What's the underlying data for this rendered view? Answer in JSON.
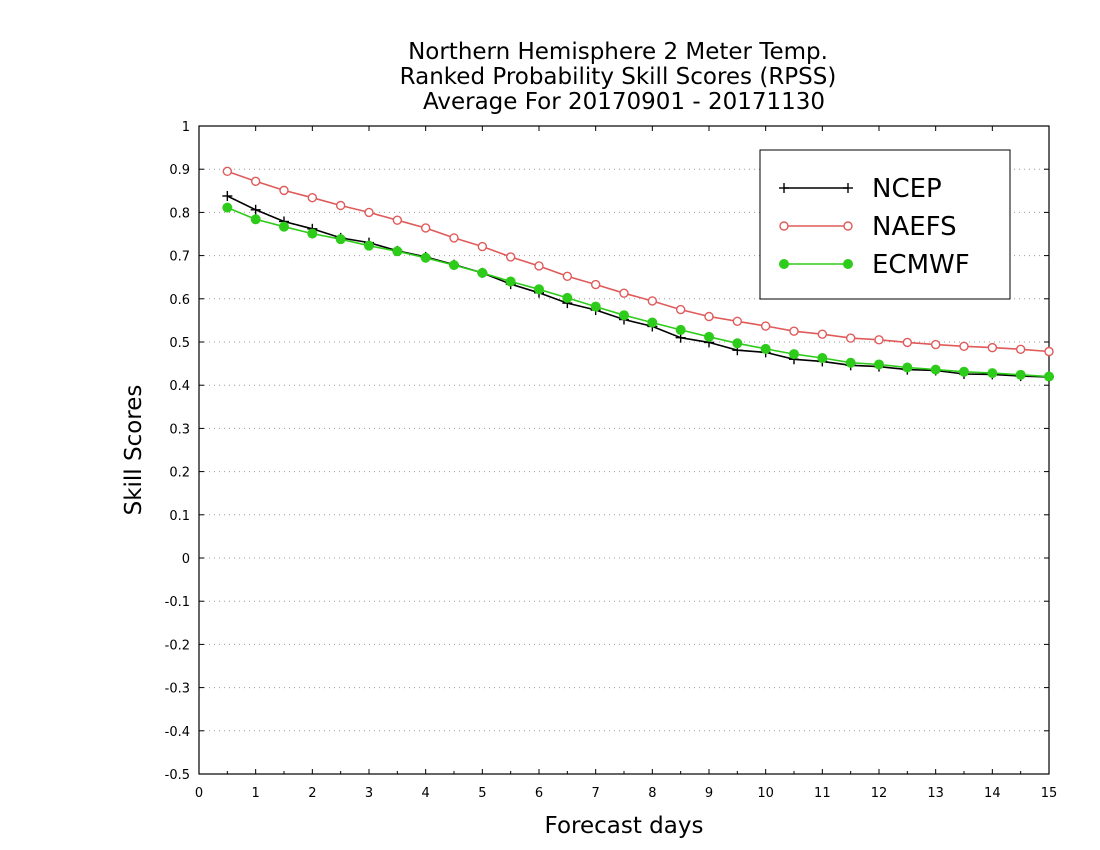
{
  "chart_data": {
    "type": "line",
    "title_lines": [
      "Northern Hemisphere 2 Meter Temp.",
      "Ranked Probability Skill Scores (RPSS)",
      "Average For 20170901 - 20171130"
    ],
    "xlabel": "Forecast days",
    "ylabel": "Skill Scores",
    "xlim": [
      0,
      15
    ],
    "ylim": [
      -0.5,
      1
    ],
    "x_ticks": [
      "0",
      "1",
      "2",
      "3",
      "4",
      "5",
      "6",
      "7",
      "8",
      "9",
      "10",
      "11",
      "12",
      "13",
      "14",
      "15"
    ],
    "y_ticks": [
      "1",
      "0.9",
      "0.8",
      "0.7",
      "0.6",
      "0.5",
      "0.4",
      "0.3",
      "0.2",
      "0.1",
      "0",
      "-0.1",
      "-0.2",
      "-0.3",
      "-0.4",
      "-0.5"
    ],
    "grid": "horizontal dotted",
    "legend_position": "top-right",
    "x": [
      0.5,
      1,
      1.5,
      2,
      2.5,
      3,
      3.5,
      4,
      4.5,
      5,
      5.5,
      6,
      6.5,
      7,
      7.5,
      8,
      8.5,
      9,
      9.5,
      10,
      10.5,
      11,
      11.5,
      12,
      12.5,
      13,
      13.5,
      14,
      14.5,
      15
    ],
    "series": [
      {
        "name": "NCEP",
        "color": "#000000",
        "marker": "plus",
        "values": [
          0.838,
          0.806,
          0.779,
          0.762,
          0.741,
          0.73,
          0.711,
          0.697,
          0.679,
          0.66,
          0.634,
          0.614,
          0.59,
          0.574,
          0.552,
          0.536,
          0.51,
          0.499,
          0.481,
          0.476,
          0.46,
          0.455,
          0.446,
          0.443,
          0.436,
          0.434,
          0.426,
          0.425,
          0.421,
          0.419
        ]
      },
      {
        "name": "NAEFS",
        "color": "#e05a5a",
        "marker": "open-circle",
        "values": [
          0.895,
          0.872,
          0.851,
          0.834,
          0.816,
          0.8,
          0.782,
          0.764,
          0.741,
          0.721,
          0.697,
          0.676,
          0.652,
          0.633,
          0.613,
          0.595,
          0.575,
          0.559,
          0.548,
          0.537,
          0.525,
          0.518,
          0.509,
          0.505,
          0.499,
          0.494,
          0.49,
          0.487,
          0.483,
          0.478
        ]
      },
      {
        "name": "ECMWF",
        "color": "#2ecc1a",
        "marker": "filled-circle",
        "values": [
          0.811,
          0.784,
          0.767,
          0.751,
          0.738,
          0.723,
          0.71,
          0.695,
          0.678,
          0.66,
          0.64,
          0.622,
          0.602,
          0.582,
          0.562,
          0.545,
          0.528,
          0.512,
          0.497,
          0.484,
          0.472,
          0.463,
          0.452,
          0.448,
          0.441,
          0.436,
          0.431,
          0.428,
          0.424,
          0.42
        ]
      }
    ]
  }
}
